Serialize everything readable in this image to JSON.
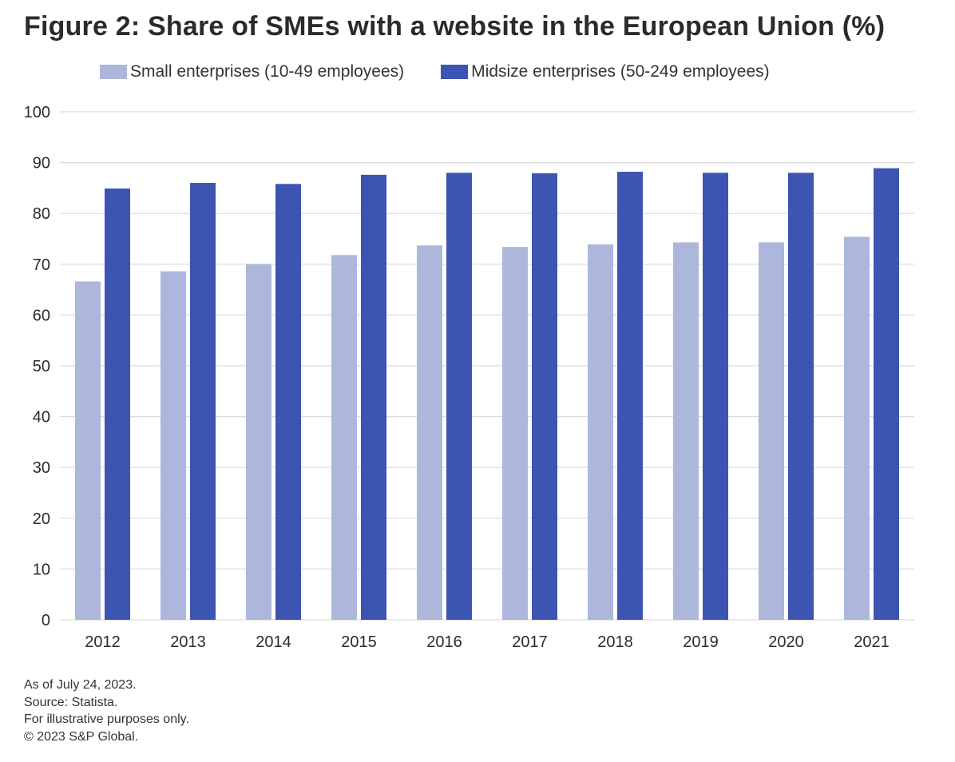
{
  "chart_data": {
    "type": "bar",
    "title": "Figure 2: Share of SMEs with a website in the European Union (%)",
    "categories": [
      "2012",
      "2013",
      "2014",
      "2015",
      "2016",
      "2017",
      "2018",
      "2019",
      "2020",
      "2021"
    ],
    "series": [
      {
        "name": "Small enterprises (10-49 employees)",
        "color": "#adb6db",
        "values": [
          66.6,
          68.6,
          70.0,
          71.8,
          73.7,
          73.4,
          73.9,
          74.3,
          74.3,
          75.4
        ]
      },
      {
        "name": "Midsize enterprises (50-249 employees)",
        "color": "#3c54b2",
        "values": [
          84.9,
          86.0,
          85.8,
          87.6,
          88.0,
          87.9,
          88.2,
          88.0,
          88.0,
          88.9
        ]
      }
    ],
    "xlabel": "",
    "ylabel": "",
    "ylim": [
      0,
      100
    ],
    "yticks": [
      "0",
      "10",
      "20",
      "30",
      "40",
      "50",
      "60",
      "70",
      "80",
      "90",
      "100"
    ],
    "grid": true,
    "legend_position": "top"
  },
  "footer": {
    "line1": "As of July 24, 2023.",
    "line2": "Source: Statista.",
    "line3": "For illustrative purposes only.",
    "line4": "© 2023 S&P Global."
  }
}
